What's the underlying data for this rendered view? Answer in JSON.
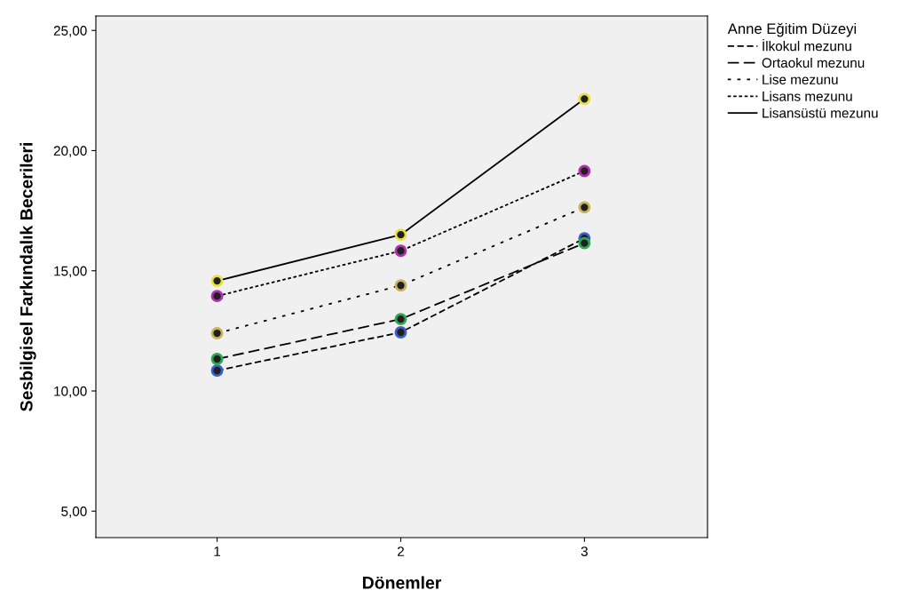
{
  "chart_data": {
    "type": "line",
    "xlabel": "Dönemler",
    "ylabel": "Sesbilgisel Farkındalık Becerileri",
    "legend_title": "Anne Eğitim Düzeyi",
    "x": [
      1,
      2,
      3
    ],
    "series": [
      {
        "name": "İlkokul mezunu",
        "color": "#3a5fcd",
        "line_style": "dashed",
        "values": [
          10.85,
          12.44,
          16.35
        ]
      },
      {
        "name": "Ortaokul mezunu",
        "color": "#2ea84f",
        "line_style": "dashed",
        "values": [
          11.33,
          12.99,
          16.15
        ]
      },
      {
        "name": "Lise mezunu",
        "color": "#c8b45a",
        "line_style": "dotted",
        "values": [
          12.4,
          14.39,
          17.64
        ]
      },
      {
        "name": "Lisans mezunu",
        "color": "#b030b0",
        "line_style": "dotted",
        "values": [
          13.95,
          15.83,
          19.15
        ]
      },
      {
        "name": "Lisansüstü mezunu",
        "color": "#e8e040",
        "line_style": "solid",
        "values": [
          14.58,
          16.5,
          22.15
        ]
      }
    ],
    "xlim": [
      0.34,
      3.67
    ],
    "ylim": [
      3.9,
      25.6
    ],
    "xticks": [
      1,
      2,
      3
    ],
    "yticks": [
      {
        "value": 5,
        "label": "5,00"
      },
      {
        "value": 10,
        "label": "10,00"
      },
      {
        "value": 15,
        "label": "15,00"
      },
      {
        "value": 20,
        "label": "20,00"
      },
      {
        "value": 25,
        "label": "25,00"
      }
    ],
    "marker": "circle",
    "legend": "top right",
    "grid": false
  }
}
